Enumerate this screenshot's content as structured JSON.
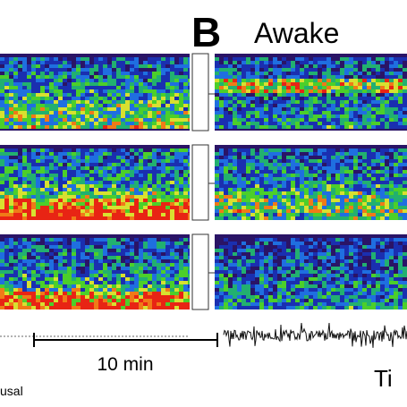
{
  "panel_label": "B",
  "title": "Awake",
  "scale_bar": "10 min",
  "left_caption": "usal",
  "right_caption": "Ti"
}
